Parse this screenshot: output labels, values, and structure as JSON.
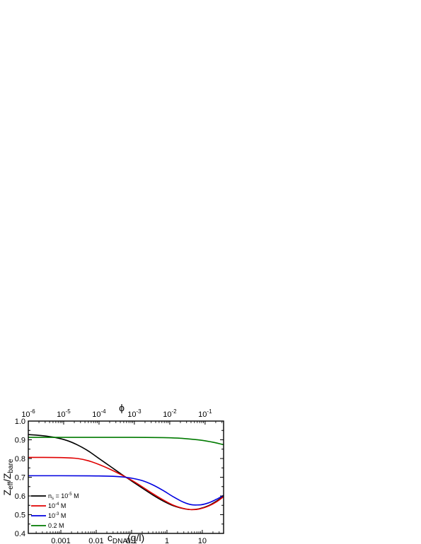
{
  "chart_data": {
    "type": "line",
    "xscale": "log",
    "xlim": [
      0.00012,
      40
    ],
    "ylim": [
      0.4,
      1.0
    ],
    "grid": false,
    "legend_position": "bottom-left",
    "xlabel": {
      "main": "c",
      "sub": "DNA",
      "rest": "(g/l)"
    },
    "ylabel": {
      "a": "Z",
      "a_sub": "eff",
      "slash": "/Z",
      "b_sub": "bare"
    },
    "top_axis_label": "ϕ",
    "x_ticks": [
      {
        "value": 0.001,
        "label": "0.001"
      },
      {
        "value": 0.01,
        "label": "0.01"
      },
      {
        "value": 0.1,
        "label": "0.1"
      },
      {
        "value": 1,
        "label": "1"
      },
      {
        "value": 10,
        "label": "10"
      }
    ],
    "y_ticks": [
      {
        "value": 0.4,
        "label": "0.4"
      },
      {
        "value": 0.5,
        "label": "0.5"
      },
      {
        "value": 0.6,
        "label": "0.6"
      },
      {
        "value": 0.7,
        "label": "0.7"
      },
      {
        "value": 0.8,
        "label": "0.8"
      },
      {
        "value": 0.9,
        "label": "0.9"
      },
      {
        "value": 1.0,
        "label": "1.0"
      }
    ],
    "top_ticks": [
      {
        "c": 0.00012,
        "base": "10",
        "exp": "-6"
      },
      {
        "c": 0.0012,
        "base": "10",
        "exp": "-5"
      },
      {
        "c": 0.012,
        "base": "10",
        "exp": "-4"
      },
      {
        "c": 0.12,
        "base": "10",
        "exp": "-3"
      },
      {
        "c": 1.2,
        "base": "10",
        "exp": "-2"
      },
      {
        "c": 12,
        "base": "10",
        "exp": "-1"
      }
    ],
    "series": [
      {
        "color": "#000000",
        "legend": {
          "main": "n",
          "sub": "s",
          "pre": " = 10",
          "sup": "-5",
          "post": " M"
        },
        "x": [
          0.00012,
          0.0003,
          0.0007,
          0.0015,
          0.003,
          0.006,
          0.012,
          0.025,
          0.05,
          0.1,
          0.2,
          0.4,
          0.8,
          1.5,
          3,
          5,
          8,
          15,
          25,
          40
        ],
        "y": [
          0.928,
          0.922,
          0.912,
          0.896,
          0.872,
          0.84,
          0.8,
          0.758,
          0.718,
          0.68,
          0.642,
          0.605,
          0.572,
          0.548,
          0.532,
          0.527,
          0.531,
          0.548,
          0.572,
          0.598
        ]
      },
      {
        "color": "#e00000",
        "legend": {
          "main": "",
          "sub": "",
          "pre": "10",
          "sup": "-4",
          "post": " M"
        },
        "x": [
          0.00012,
          0.001,
          0.003,
          0.006,
          0.012,
          0.025,
          0.05,
          0.1,
          0.2,
          0.4,
          0.8,
          1.5,
          3,
          5,
          8,
          15,
          25,
          40
        ],
        "y": [
          0.806,
          0.805,
          0.8,
          0.788,
          0.768,
          0.742,
          0.714,
          0.684,
          0.649,
          0.612,
          0.578,
          0.551,
          0.533,
          0.527,
          0.53,
          0.546,
          0.568,
          0.596
        ]
      },
      {
        "color": "#0000e0",
        "legend": {
          "main": "",
          "sub": "",
          "pre": "10",
          "sup": "-3",
          "post": " M"
        },
        "x": [
          0.00012,
          0.001,
          0.01,
          0.03,
          0.06,
          0.1,
          0.2,
          0.4,
          0.8,
          1.5,
          3,
          5,
          8,
          15,
          25,
          40
        ],
        "y": [
          0.708,
          0.708,
          0.707,
          0.705,
          0.701,
          0.695,
          0.682,
          0.659,
          0.628,
          0.596,
          0.566,
          0.553,
          0.552,
          0.563,
          0.582,
          0.603
        ]
      },
      {
        "color": "#007a00",
        "legend": {
          "main": "",
          "sub": "",
          "pre": "0.2 M",
          "sup": "",
          "post": ""
        },
        "x": [
          0.00012,
          0.01,
          0.1,
          1,
          3,
          10,
          20,
          40
        ],
        "y": [
          0.913,
          0.913,
          0.913,
          0.911,
          0.907,
          0.897,
          0.887,
          0.874
        ]
      }
    ]
  }
}
